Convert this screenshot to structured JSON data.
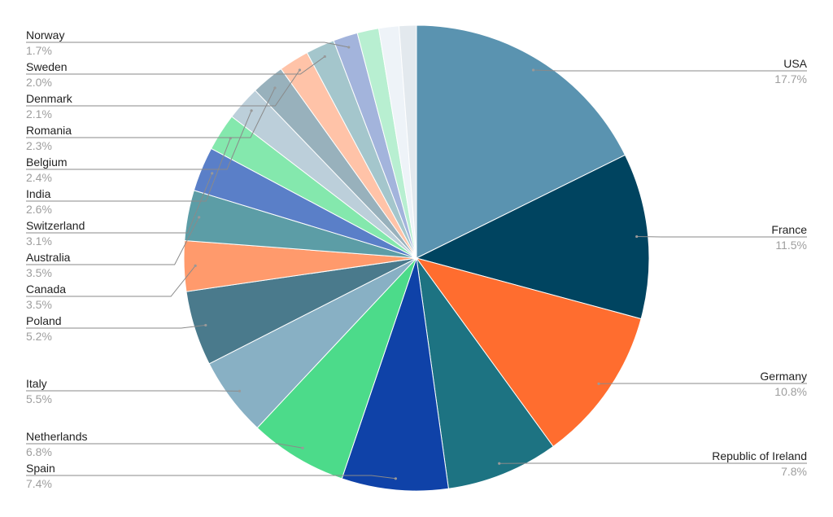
{
  "chart_data": {
    "type": "pie",
    "title": "",
    "start": "top",
    "direction": "clockwise",
    "slices": [
      {
        "name": "USA",
        "value": 17.7,
        "label": "17.7%",
        "color": "#5a93b0"
      },
      {
        "name": "France",
        "value": 11.5,
        "label": "11.5%",
        "color": "#004460"
      },
      {
        "name": "Germany",
        "value": 10.8,
        "label": "10.8%",
        "color": "#ff6d2f"
      },
      {
        "name": "Republic of Ireland",
        "value": 7.8,
        "label": "7.8%",
        "color": "#1d7382"
      },
      {
        "name": "Spain",
        "value": 7.4,
        "label": "7.4%",
        "color": "#0f42a8"
      },
      {
        "name": "Netherlands",
        "value": 6.8,
        "label": "6.8%",
        "color": "#4cdb8a"
      },
      {
        "name": "Italy",
        "value": 5.5,
        "label": "5.5%",
        "color": "#88b0c4"
      },
      {
        "name": "Poland",
        "value": 5.2,
        "label": "5.2%",
        "color": "#4a7a8c"
      },
      {
        "name": "Canada",
        "value": 3.5,
        "label": "3.5%",
        "color": "#ff9a6c"
      },
      {
        "name": "Australia",
        "value": 3.5,
        "label": "3.5%",
        "color": "#5c9da6"
      },
      {
        "name": "Switzerland",
        "value": 3.1,
        "label": "3.1%",
        "color": "#5a7fc8"
      },
      {
        "name": "India",
        "value": 2.6,
        "label": "2.6%",
        "color": "#84e8ad"
      },
      {
        "name": "Belgium",
        "value": 2.4,
        "label": "2.4%",
        "color": "#bccfda"
      },
      {
        "name": "Romania",
        "value": 2.3,
        "label": "2.3%",
        "color": "#98b1bc"
      },
      {
        "name": "Denmark",
        "value": 2.1,
        "label": "2.1%",
        "color": "#ffc3a8"
      },
      {
        "name": "Sweden",
        "value": 2.0,
        "label": "2.0%",
        "color": "#a4c6cc"
      },
      {
        "name": "Norway",
        "value": 1.7,
        "label": "1.7%",
        "color": "#a3b4dc"
      },
      {
        "value": 1.5,
        "color": "#b8efd1"
      },
      {
        "value": 1.4,
        "color": "#eef3f8"
      },
      {
        "value": 1.2,
        "color": "#e3e9ee"
      }
    ],
    "legend": "none",
    "label_position": "outside with leader lines"
  }
}
